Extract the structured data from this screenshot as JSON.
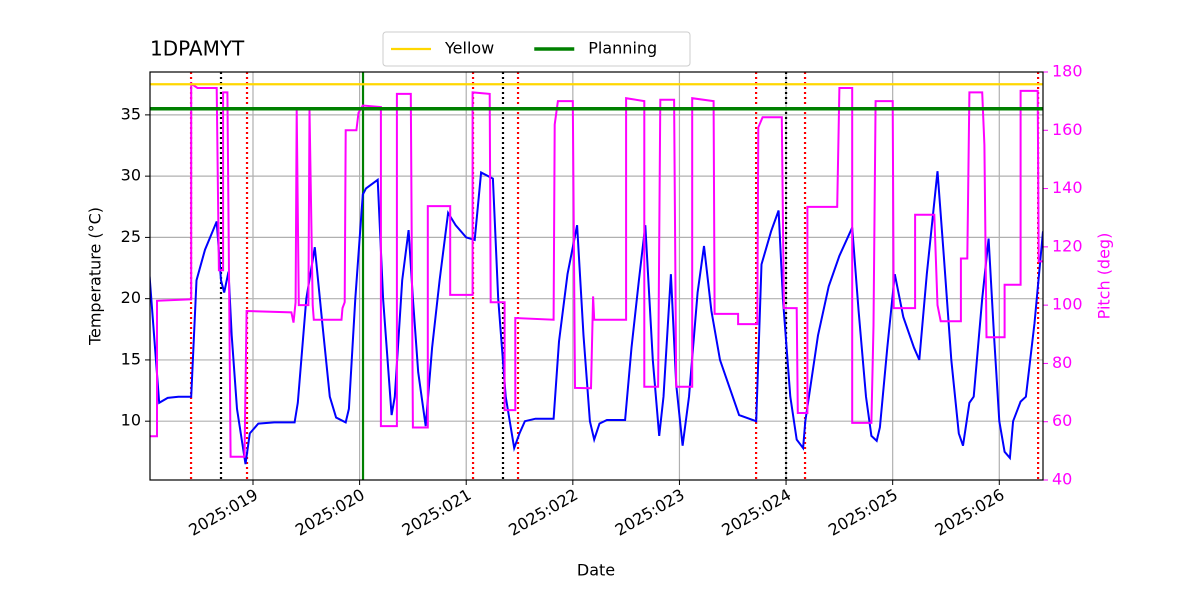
{
  "chart_data": {
    "type": "line",
    "title": "1DPAMYT",
    "xlabel": "Date",
    "ylabel": "Temperature (°C)",
    "y2label": "Pitch (deg)",
    "xlim": [
      18.034,
      26.41
    ],
    "xticks": [
      {
        "value": 19,
        "label": "2025:019"
      },
      {
        "value": 20,
        "label": "2025:020"
      },
      {
        "value": 21,
        "label": "2025:021"
      },
      {
        "value": 22,
        "label": "2025:022"
      },
      {
        "value": 23,
        "label": "2025:023"
      },
      {
        "value": 24,
        "label": "2025:024"
      },
      {
        "value": 25,
        "label": "2025:025"
      },
      {
        "value": 26,
        "label": "2025:026"
      }
    ],
    "ylim": [
      5.2,
      38.5
    ],
    "yticks": [
      10,
      15,
      20,
      25,
      30,
      35
    ],
    "y2lim": [
      40,
      180
    ],
    "y2ticks": [
      40,
      60,
      80,
      100,
      120,
      140,
      160,
      180
    ],
    "y2color": "#ff00ff",
    "grid": true,
    "legend": "top",
    "series": [
      {
        "color": "#0000ff",
        "x": [
          18.03,
          18.12,
          18.2,
          18.3,
          18.42,
          18.47,
          18.55,
          18.66,
          18.7,
          18.73,
          18.77,
          18.8,
          18.85,
          18.93,
          18.97,
          19.05,
          19.2,
          19.39,
          19.42,
          19.5,
          19.58,
          19.65,
          19.72,
          19.78,
          19.87,
          19.9,
          19.96,
          20.03,
          20.06,
          20.17,
          20.22,
          20.3,
          20.33,
          20.4,
          20.46,
          20.5,
          20.55,
          20.62,
          20.68,
          20.75,
          20.83,
          20.9,
          21,
          21.08,
          21.14,
          21.25,
          21.3,
          21.37,
          21.45,
          21.5,
          21.55,
          21.65,
          21.82,
          21.87,
          21.95,
          22.04,
          22.1,
          22.16,
          22.2,
          22.25,
          22.32,
          22.49,
          22.55,
          22.62,
          22.68,
          22.75,
          22.81,
          22.85,
          22.92,
          22.97,
          23.03,
          23.09,
          23.17,
          23.23,
          23.3,
          23.38,
          23.48,
          23.56,
          23.72,
          23.77,
          23.86,
          23.93,
          23.97,
          24.04,
          24.1,
          24.16,
          24.18,
          24.3,
          24.4,
          24.5,
          24.62,
          24.68,
          24.75,
          24.8,
          24.85,
          24.88,
          24.95,
          25.02,
          25.1,
          25.2,
          25.25,
          25.32,
          25.42,
          25.48,
          25.55,
          25.62,
          25.66,
          25.72,
          25.76,
          25.84,
          25.9,
          25.95,
          26,
          26.05,
          26.1,
          26.13,
          26.2,
          26.25,
          26.33,
          26.41
        ],
        "values": [
          21.8,
          11.5,
          11.9,
          12,
          12,
          21.5,
          24,
          26.3,
          21.5,
          20.5,
          22.2,
          17,
          11,
          6.5,
          9,
          9.8,
          9.9,
          9.9,
          11.5,
          20,
          24.2,
          18,
          12,
          10.3,
          9.9,
          11,
          20,
          28.5,
          29,
          29.7,
          20,
          10.5,
          12,
          21.5,
          25.6,
          20,
          14,
          9.6,
          16,
          21.5,
          27,
          26,
          25,
          24.8,
          30.3,
          29.8,
          20,
          12,
          7.8,
          9,
          10,
          10.2,
          10.2,
          16.5,
          22,
          26,
          17,
          10,
          8.5,
          9.8,
          10.1,
          10.1,
          16,
          21.5,
          26,
          15,
          8.8,
          12,
          22,
          13,
          8,
          12,
          20.5,
          24.3,
          19,
          15,
          12.5,
          10.5,
          10,
          22.8,
          25.5,
          27.2,
          20,
          12,
          8.5,
          7.8,
          10,
          17,
          21,
          23.5,
          25.8,
          19,
          12,
          8.8,
          8.4,
          9.5,
          16,
          22,
          18.5,
          16,
          15,
          22,
          30.4,
          23.5,
          15,
          9,
          8,
          11.5,
          12,
          20,
          24.9,
          17,
          10,
          7.5,
          7,
          10,
          11.6,
          12,
          18,
          25.5
        ]
      },
      {
        "color": "#ff00ff",
        "axis": "y2",
        "x": [
          18.03,
          18.1,
          18.1,
          18.42,
          18.42,
          18.48,
          18.66,
          18.68,
          18.72,
          18.72,
          18.76,
          18.79,
          18.92,
          18.94,
          19.36,
          19.38,
          19.4,
          19.41,
          19.43,
          19.52,
          19.53,
          19.56,
          19.57,
          19.83,
          19.84,
          19.86,
          19.87,
          19.97,
          19.99,
          20.03,
          20.2,
          20.2,
          20.35,
          20.35,
          20.48,
          20.5,
          20.64,
          20.64,
          20.85,
          20.85,
          21.06,
          21.06,
          21.22,
          21.23,
          21.36,
          21.36,
          21.46,
          21.46,
          21.82,
          21.83,
          21.86,
          22,
          22.02,
          22.17,
          22.19,
          22.2,
          22.5,
          22.5,
          22.67,
          22.67,
          22.8,
          22.82,
          22.95,
          22.97,
          23.12,
          23.12,
          23.32,
          23.33,
          23.55,
          23.55,
          23.73,
          23.74,
          23.78,
          23.96,
          23.98,
          24.1,
          24.11,
          24.2,
          24.2,
          24.48,
          24.5,
          24.62,
          24.62,
          24.8,
          24.82,
          24.84,
          25,
          25.01,
          25.21,
          25.21,
          25.39,
          25.42,
          25.45,
          25.64,
          25.64,
          25.7,
          25.72,
          25.84,
          25.86,
          25.88,
          26.05,
          26.05,
          26.2,
          26.2,
          26.36,
          26.37,
          26.41
        ],
        "values": [
          55,
          55,
          101.5,
          102,
          176,
          174.5,
          174.5,
          112,
          112,
          173,
          173,
          48,
          48,
          98,
          97.5,
          94,
          101,
          167,
          100,
          100,
          167,
          100,
          95,
          95,
          99,
          101,
          160,
          160,
          166,
          168.5,
          168,
          58.5,
          58.5,
          172.5,
          172.5,
          58,
          58,
          134,
          134,
          103.5,
          103.5,
          173,
          172.5,
          101,
          101,
          64,
          64,
          95.6,
          95,
          162,
          170,
          170,
          71.6,
          71.5,
          103,
          95,
          95,
          171,
          170,
          72,
          72,
          170.5,
          170.5,
          72,
          72,
          171,
          170,
          97,
          97,
          93.5,
          93.5,
          161,
          164.5,
          164.5,
          99,
          99,
          63,
          63,
          133.7,
          133.7,
          174.5,
          174.5,
          59.6,
          59.6,
          93,
          170,
          170,
          99,
          99,
          131,
          131,
          100,
          94.5,
          94.5,
          116,
          116,
          173,
          173,
          155,
          89,
          89,
          107,
          107,
          173.5,
          173.5,
          115,
          115
        ]
      }
    ],
    "hlines": [
      {
        "name": "Yellow",
        "color": "#ffd700",
        "value": 37.5
      },
      {
        "name": "Planning",
        "color": "#008000",
        "value": 35.5
      }
    ],
    "vlines": [
      {
        "x": 18.419,
        "color": "#ff0000",
        "style": "dotted"
      },
      {
        "x": 18.944,
        "color": "#ff0000",
        "style": "dotted"
      },
      {
        "x": 21.064,
        "color": "#ff0000",
        "style": "dotted"
      },
      {
        "x": 21.486,
        "color": "#ff0000",
        "style": "dotted"
      },
      {
        "x": 23.719,
        "color": "#ff0000",
        "style": "dotted"
      },
      {
        "x": 24.178,
        "color": "#ff0000",
        "style": "dotted"
      },
      {
        "x": 26.364,
        "color": "#ff0000",
        "style": "dotted"
      },
      {
        "x": 18.7,
        "color": "#000000",
        "style": "dotted"
      },
      {
        "x": 21.345,
        "color": "#000000",
        "style": "dotted"
      },
      {
        "x": 24.0,
        "color": "#000000",
        "style": "dotted"
      },
      {
        "x": 20.032,
        "color": "#008000",
        "style": "solid"
      }
    ]
  }
}
